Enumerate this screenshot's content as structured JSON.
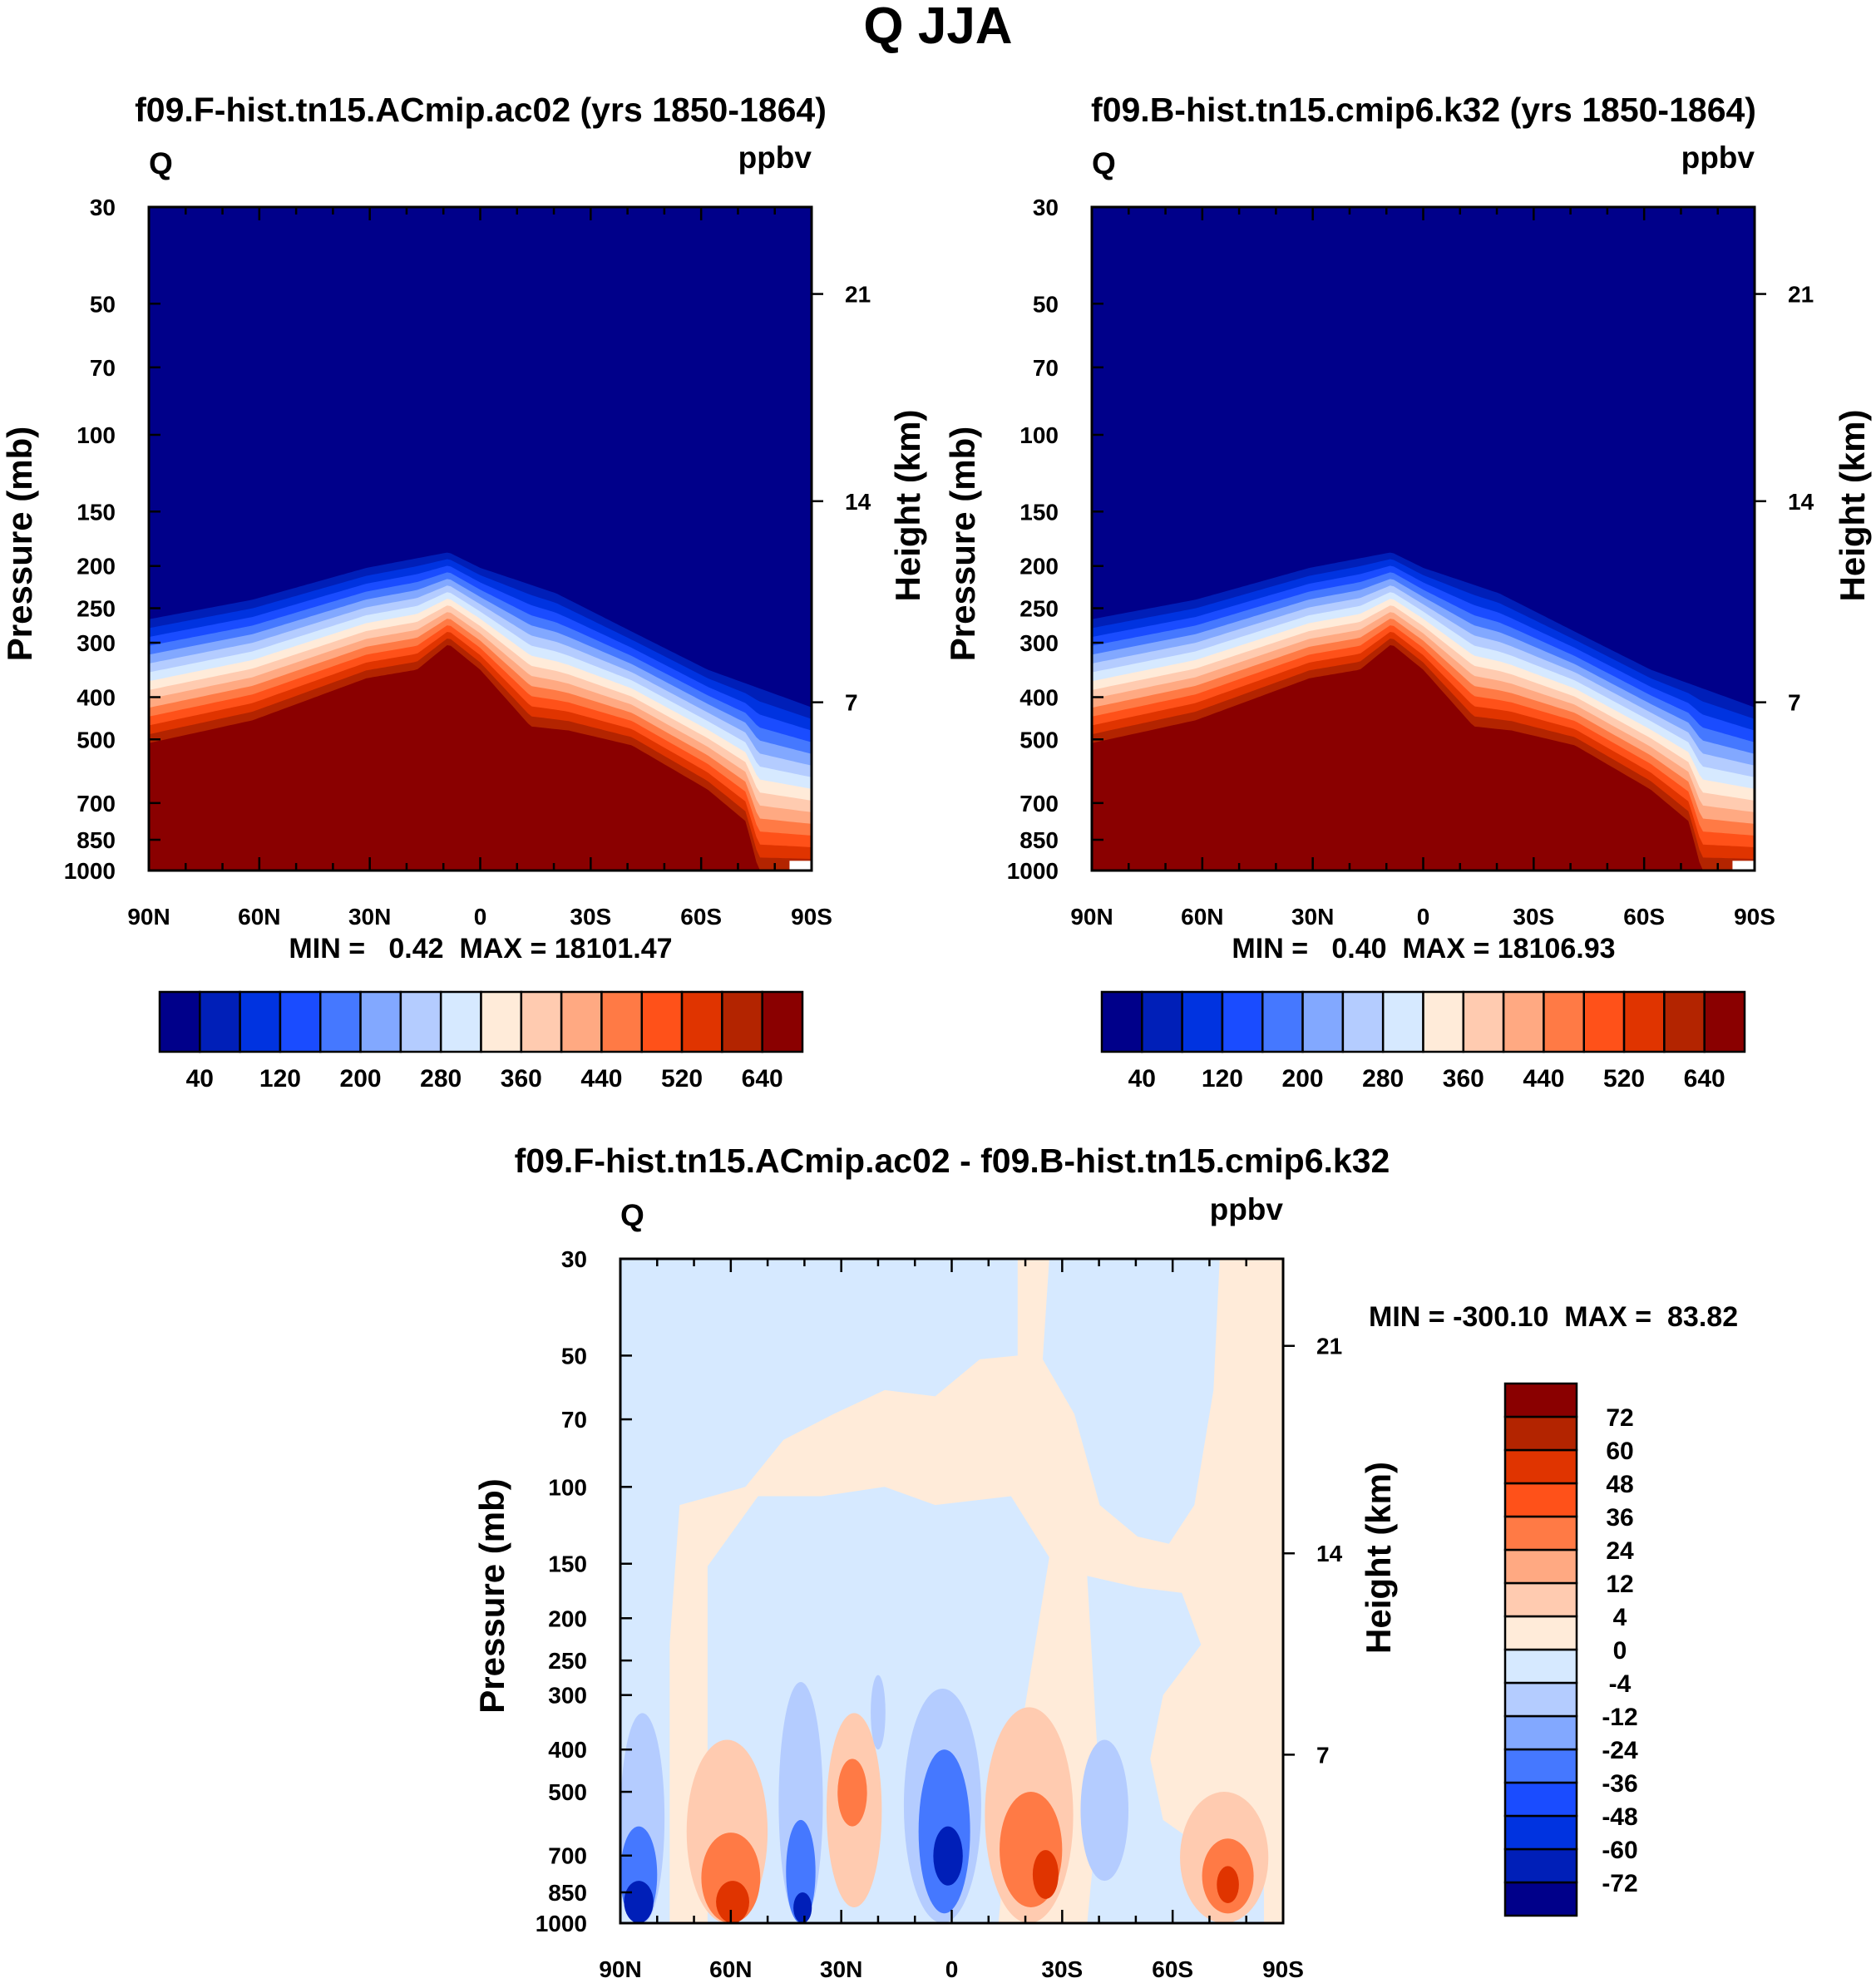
{
  "title": "Q JJA",
  "chart_data": [
    {
      "id": "ctrl",
      "type": "heatmap",
      "title": "f09.F-hist.tn15.ACmip.ac02 (yrs 1850-1864)",
      "variable_label": "Q",
      "units": "ppbv",
      "ylabel": "Pressure (mb)",
      "y2label": "Height (km)",
      "x_ticks": [
        {
          "lat": 90,
          "label": "90N"
        },
        {
          "lat": 60,
          "label": "60N"
        },
        {
          "lat": 30,
          "label": "30N"
        },
        {
          "lat": 0,
          "label": "0"
        },
        {
          "lat": -30,
          "label": "30S"
        },
        {
          "lat": -60,
          "label": "60S"
        },
        {
          "lat": -90,
          "label": "90S"
        }
      ],
      "xlim": [
        90,
        -90
      ],
      "ylim": [
        1000,
        30
      ],
      "y_scale": "log",
      "y_ticks": [
        "30",
        "50",
        "70",
        "100",
        "150",
        "200",
        "250",
        "300",
        "400",
        "500",
        "700",
        "850",
        "1000"
      ],
      "y2_ticks": [
        {
          "km": "21",
          "p": 47.5
        },
        {
          "km": "14",
          "p": 142
        },
        {
          "km": "7",
          "p": 411
        }
      ],
      "min_max": "MIN =   0.42  MAX = 18101.47",
      "colorbar": {
        "orientation": "horizontal",
        "colors": [
          "#00008a",
          "#001fb8",
          "#0033e0",
          "#1a4cff",
          "#4578ff",
          "#82a8ff",
          "#b4ccff",
          "#d6e9ff",
          "#ffebd9",
          "#ffcbb0",
          "#ffa982",
          "#ff7a45",
          "#ff5119",
          "#e03400",
          "#b32400",
          "#8a0000"
        ],
        "labels": [
          "40",
          "120",
          "200",
          "280",
          "360",
          "440",
          "520",
          "640"
        ]
      },
      "field": {
        "kind": "bands",
        "upper_boundary": [
          [
            90,
            265
          ],
          [
            61.8,
            239
          ],
          [
            30.9,
            202
          ],
          [
            8.6,
            186
          ],
          [
            0,
            202
          ],
          [
            -20.6,
            231
          ],
          [
            -41.2,
            283
          ],
          [
            -61.8,
            346
          ],
          [
            -90,
            422
          ]
        ],
        "max_boundary": [
          [
            90,
            510
          ],
          [
            61.8,
            452
          ],
          [
            30.9,
            362
          ],
          [
            17.2,
            346
          ],
          [
            8.6,
            302
          ],
          [
            0,
            346
          ],
          [
            -13.7,
            467
          ],
          [
            -24,
            477
          ],
          [
            -41.2,
            516
          ],
          [
            -61.8,
            652
          ],
          [
            -72.1,
            771
          ],
          [
            -75.6,
            1000
          ],
          [
            -90,
            1000
          ]
        ]
      }
    },
    {
      "id": "test",
      "type": "heatmap",
      "title": "f09.B-hist.tn15.cmip6.k32 (yrs 1850-1864)",
      "variable_label": "Q",
      "units": "ppbv",
      "ylabel": "Pressure (mb)",
      "y2label": "Height (km)",
      "x_ticks": [
        {
          "lat": 90,
          "label": "90N"
        },
        {
          "lat": 60,
          "label": "60N"
        },
        {
          "lat": 30,
          "label": "30N"
        },
        {
          "lat": 0,
          "label": "0"
        },
        {
          "lat": -30,
          "label": "30S"
        },
        {
          "lat": -60,
          "label": "60S"
        },
        {
          "lat": -90,
          "label": "90S"
        }
      ],
      "xlim": [
        90,
        -90
      ],
      "ylim": [
        1000,
        30
      ],
      "y_scale": "log",
      "y_ticks": [
        "30",
        "50",
        "70",
        "100",
        "150",
        "200",
        "250",
        "300",
        "400",
        "500",
        "700",
        "850",
        "1000"
      ],
      "y2_ticks": [
        {
          "km": "21",
          "p": 47.5
        },
        {
          "km": "14",
          "p": 142
        },
        {
          "km": "7",
          "p": 411
        }
      ],
      "min_max": "MIN =   0.40  MAX = 18106.93",
      "colorbar": {
        "orientation": "horizontal",
        "colors": [
          "#00008a",
          "#001fb8",
          "#0033e0",
          "#1a4cff",
          "#4578ff",
          "#82a8ff",
          "#b4ccff",
          "#d6e9ff",
          "#ffebd9",
          "#ffcbb0",
          "#ffa982",
          "#ff7a45",
          "#ff5119",
          "#e03400",
          "#b32400",
          "#8a0000"
        ],
        "labels": [
          "40",
          "120",
          "200",
          "280",
          "360",
          "440",
          "520",
          "640"
        ]
      },
      "field": {
        "kind": "bands",
        "upper_boundary": [
          [
            90,
            265
          ],
          [
            61.8,
            239
          ],
          [
            30.9,
            202
          ],
          [
            8.6,
            186
          ],
          [
            0,
            202
          ],
          [
            -20.6,
            231
          ],
          [
            -41.2,
            283
          ],
          [
            -61.8,
            346
          ],
          [
            -90,
            422
          ]
        ],
        "max_boundary": [
          [
            90,
            510
          ],
          [
            61.8,
            452
          ],
          [
            30.9,
            362
          ],
          [
            17.2,
            346
          ],
          [
            8.6,
            302
          ],
          [
            0,
            346
          ],
          [
            -13.7,
            467
          ],
          [
            -24,
            477
          ],
          [
            -41.2,
            516
          ],
          [
            -61.8,
            652
          ],
          [
            -72.1,
            771
          ],
          [
            -75.6,
            1000
          ],
          [
            -90,
            1000
          ]
        ]
      }
    },
    {
      "id": "diff",
      "type": "heatmap",
      "title": "f09.F-hist.tn15.ACmip.ac02 - f09.B-hist.tn15.cmip6.k32",
      "variable_label": "Q",
      "units": "ppbv",
      "ylabel": "Pressure (mb)",
      "y2label": "Height (km)",
      "x_ticks": [
        {
          "lat": 90,
          "label": "90N"
        },
        {
          "lat": 60,
          "label": "60N"
        },
        {
          "lat": 30,
          "label": "30N"
        },
        {
          "lat": 0,
          "label": "0"
        },
        {
          "lat": -30,
          "label": "30S"
        },
        {
          "lat": -60,
          "label": "60S"
        },
        {
          "lat": -90,
          "label": "90S"
        }
      ],
      "xlim": [
        90,
        -90
      ],
      "ylim": [
        1000,
        30
      ],
      "y_scale": "log",
      "y_ticks": [
        "30",
        "50",
        "70",
        "100",
        "150",
        "200",
        "250",
        "300",
        "400",
        "500",
        "700",
        "850",
        "1000"
      ],
      "y2_ticks": [
        {
          "km": "21",
          "p": 47.5
        },
        {
          "km": "14",
          "p": 142
        },
        {
          "km": "7",
          "p": 411
        }
      ],
      "min_max": "MIN = -300.10  MAX =  83.82",
      "colorbar": {
        "orientation": "vertical",
        "colors": [
          "#00008a",
          "#001fb8",
          "#0033e0",
          "#1a4cff",
          "#4578ff",
          "#82a8ff",
          "#b4ccff",
          "#d6e9ff",
          "#ffebd9",
          "#ffcbb0",
          "#ffa982",
          "#ff7a45",
          "#ff5119",
          "#e03400",
          "#b32400",
          "#8a0000"
        ],
        "labels": [
          "-72",
          "-60",
          "-48",
          "-36",
          "-24",
          "-12",
          "-4",
          "0",
          "4",
          "12",
          "24",
          "36",
          "48",
          "60",
          "72"
        ]
      },
      "field": {
        "kind": "regions",
        "background_level": 7,
        "polygons": [
          {
            "level": 8,
            "points": [
              [
                76.6,
                1000
              ],
              [
                76.6,
                230
              ],
              [
                73.9,
                110
              ],
              [
                56,
                100
              ],
              [
                45.7,
                78
              ],
              [
                32,
                68
              ],
              [
                18.2,
                60
              ],
              [
                4.5,
                62
              ],
              [
                -7.6,
                51
              ],
              [
                -17.9,
                50
              ],
              [
                -17.9,
                30
              ],
              [
                -26.5,
                30
              ],
              [
                -24.7,
                51
              ],
              [
                -33.3,
                68
              ],
              [
                -40.2,
                110
              ],
              [
                -50.5,
                130
              ],
              [
                -59,
                135
              ],
              [
                -65.9,
                110
              ],
              [
                -71.1,
                60
              ],
              [
                -72.8,
                30
              ],
              [
                -90,
                30
              ],
              [
                -90,
                1000
              ]
            ]
          },
          {
            "level": 7,
            "points": [
              [
                66.3,
                1000
              ],
              [
                66.3,
                152
              ],
              [
                52.6,
                105
              ],
              [
                35.4,
                105
              ],
              [
                18.2,
                100
              ],
              [
                4.5,
                110
              ],
              [
                -16.1,
                105
              ],
              [
                -26.5,
                145
              ],
              [
                -21.3,
                270
              ],
              [
                -16.1,
                500
              ],
              [
                -12.7,
                1000
              ]
            ]
          },
          {
            "level": 7,
            "points": [
              [
                -36.8,
                160
              ],
              [
                -50.5,
                170
              ],
              [
                -62.5,
                175
              ],
              [
                -67.7,
                230
              ],
              [
                -57.4,
                300
              ],
              [
                -53.9,
                420
              ],
              [
                -57.4,
                580
              ],
              [
                -71.1,
                700
              ],
              [
                -84.8,
                750
              ],
              [
                -84.8,
                1000
              ],
              [
                -36.8,
                1000
              ],
              [
                -40.2,
                500
              ]
            ]
          }
        ],
        "blobs": [
          {
            "level": 6,
            "lat": [
              90,
              78
            ],
            "p": [
              330,
              1000
            ]
          },
          {
            "level": 4,
            "lat": [
              90,
              80
            ],
            "p": [
              600,
              1000
            ]
          },
          {
            "level": 1,
            "lat": [
              89,
              81
            ],
            "p": [
              800,
              1000
            ]
          },
          {
            "level": 9,
            "lat": [
              72,
              50
            ],
            "p": [
              380,
              1000
            ]
          },
          {
            "level": 11,
            "lat": [
              68,
              52
            ],
            "p": [
              620,
              1000
            ]
          },
          {
            "level": 13,
            "lat": [
              64,
              55
            ],
            "p": [
              800,
              1000
            ]
          },
          {
            "level": 6,
            "lat": [
              47,
              35
            ],
            "p": [
              280,
              1000
            ]
          },
          {
            "level": 4,
            "lat": [
              45,
              37
            ],
            "p": [
              580,
              1000
            ]
          },
          {
            "level": 1,
            "lat": [
              43,
              38
            ],
            "p": [
              850,
              1000
            ]
          },
          {
            "level": 9,
            "lat": [
              34,
              19
            ],
            "p": [
              330,
              920
            ]
          },
          {
            "level": 11,
            "lat": [
              31,
              23
            ],
            "p": [
              420,
              600
            ]
          },
          {
            "level": 6,
            "lat": [
              22,
              18
            ],
            "p": [
              270,
              400
            ]
          },
          {
            "level": 6,
            "lat": [
              13,
              -8
            ],
            "p": [
              290,
              1000
            ]
          },
          {
            "level": 4,
            "lat": [
              9,
              -5
            ],
            "p": [
              400,
              950
            ]
          },
          {
            "level": 1,
            "lat": [
              5,
              -3
            ],
            "p": [
              600,
              820
            ]
          },
          {
            "level": 9,
            "lat": [
              -9,
              -33
            ],
            "p": [
              320,
              1000
            ]
          },
          {
            "level": 11,
            "lat": [
              -13,
              -30
            ],
            "p": [
              500,
              920
            ]
          },
          {
            "level": 13,
            "lat": [
              -22,
              -29
            ],
            "p": [
              680,
              880
            ]
          },
          {
            "level": 6,
            "lat": [
              -35,
              -48
            ],
            "p": [
              380,
              800
            ]
          },
          {
            "level": 9,
            "lat": [
              -62,
              -86
            ],
            "p": [
              500,
              1000
            ]
          },
          {
            "level": 11,
            "lat": [
              -68,
              -82
            ],
            "p": [
              640,
              950
            ]
          },
          {
            "level": 13,
            "lat": [
              -72,
              -78
            ],
            "p": [
              740,
              900
            ]
          }
        ]
      }
    }
  ]
}
